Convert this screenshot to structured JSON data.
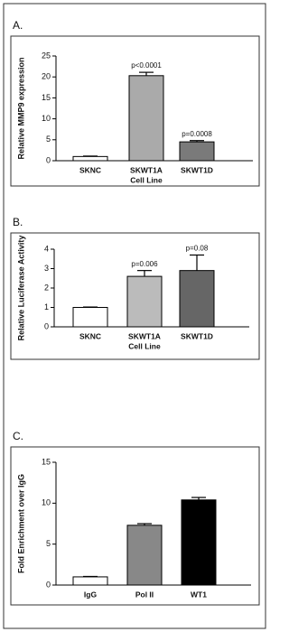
{
  "chart_data": [
    {
      "type": "bar",
      "panel_label": "A.",
      "ylabel": "Relative MMP9 expression",
      "xlabel": "Cell Line",
      "categories": [
        "SKNC",
        "SKWT1A",
        "SKWT1D"
      ],
      "values": [
        1,
        20.3,
        4.5
      ],
      "errors": [
        0.1,
        0.8,
        0.3
      ],
      "colors": [
        "#ffffff",
        "#aaaaaa",
        "#7a7a7a"
      ],
      "annotations": [
        {
          "category": "SKWT1A",
          "text": "p<0.0001"
        },
        {
          "category": "SKWT1D",
          "text": "p=0.0008"
        }
      ],
      "ylim": [
        0,
        25
      ],
      "yticks": [
        0,
        5,
        10,
        15,
        20,
        25
      ]
    },
    {
      "type": "bar",
      "panel_label": "B.",
      "ylabel": "Relative Luciferase Activity",
      "xlabel": "Cell Line",
      "categories": [
        "SKNC",
        "SKWT1A",
        "SKWT1D"
      ],
      "values": [
        1,
        2.6,
        2.9
      ],
      "errors": [
        0.02,
        0.3,
        0.8
      ],
      "colors": [
        "#ffffff",
        "#bbbbbb",
        "#666666"
      ],
      "annotations": [
        {
          "category": "SKWT1A",
          "text": "p=0.006"
        },
        {
          "category": "SKWT1D",
          "text": "p=0.08"
        }
      ],
      "ylim": [
        0,
        4
      ],
      "yticks": [
        0,
        1,
        2,
        3,
        4
      ]
    },
    {
      "type": "bar",
      "panel_label": "C.",
      "ylabel": "Fold Enrichment over IgG",
      "categories": [
        "IgG",
        "Pol II",
        "WT1"
      ],
      "values": [
        1,
        7.3,
        10.4
      ],
      "errors": [
        0.05,
        0.2,
        0.3
      ],
      "colors": [
        "#ffffff",
        "#888888",
        "#000000"
      ],
      "ylim": [
        0,
        15
      ],
      "yticks": [
        0,
        5,
        10,
        15
      ]
    }
  ]
}
